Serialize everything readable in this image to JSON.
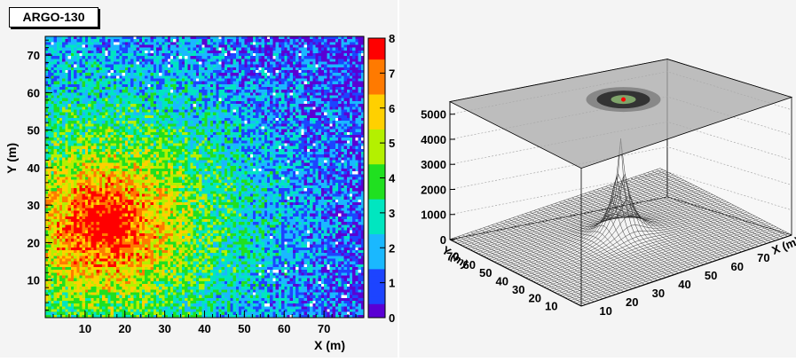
{
  "title": "ARGO-130",
  "chart_data": [
    {
      "type": "heatmap",
      "xlabel": "X (m)",
      "ylabel": "Y (m)",
      "xlim": [
        0,
        80
      ],
      "ylim": [
        0,
        75
      ],
      "x_ticks": [
        "10",
        "20",
        "30",
        "40",
        "50",
        "60",
        "70"
      ],
      "y_ticks": [
        "10",
        "20",
        "30",
        "40",
        "50",
        "60",
        "70"
      ],
      "colorbar": {
        "min": 0,
        "max": 8,
        "ticks": [
          "0",
          "1",
          "2",
          "3",
          "4",
          "5",
          "6",
          "7",
          "8"
        ]
      },
      "peak": {
        "x": 15,
        "y": 25
      },
      "grid": false
    },
    {
      "type": "surface",
      "zlim": [
        0,
        5500
      ],
      "z_ticks": [
        "0",
        "1000",
        "2000",
        "3000",
        "4000",
        "5000"
      ],
      "x_ticks": [
        "10",
        "20",
        "30",
        "40",
        "50",
        "60",
        "70"
      ],
      "y_ticks": [
        "10",
        "20",
        "30",
        "40",
        "50",
        "60",
        "70"
      ],
      "xlabel": "X (m)",
      "ylabel": "Y (m)",
      "peak": {
        "x": 40,
        "y": 40,
        "z": 3650
      }
    }
  ],
  "colors": {
    "peak": "#ff0000",
    "frame": "#000000",
    "background": "#f4f4f4"
  }
}
